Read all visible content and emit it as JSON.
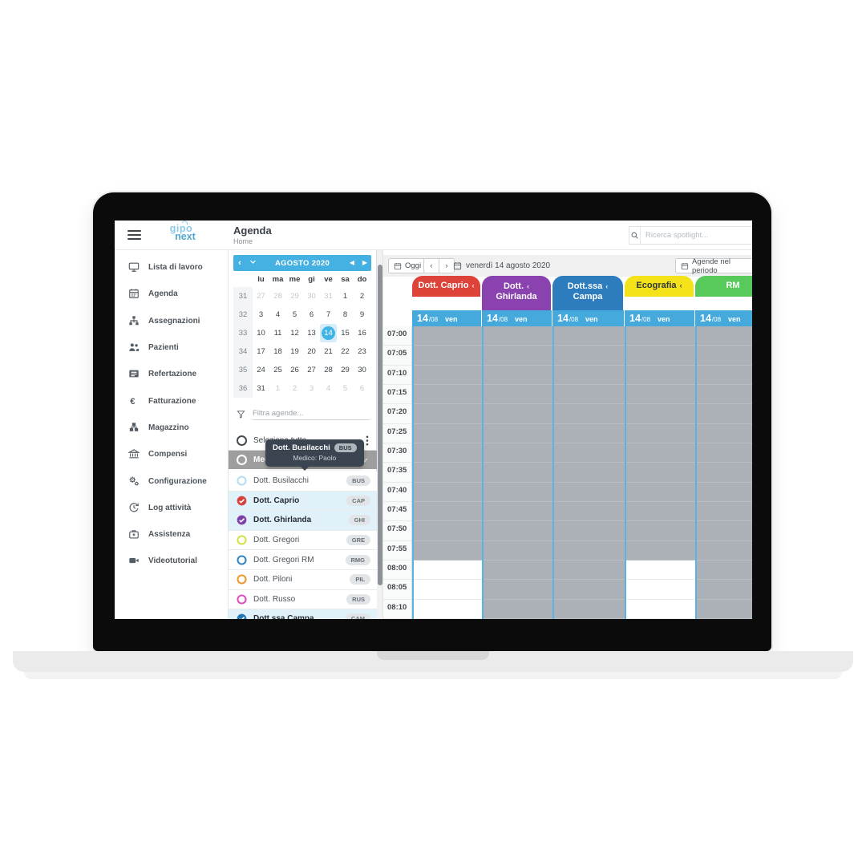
{
  "header": {
    "logo_line1": "gipo",
    "logo_line2": "next",
    "page_title": "Agenda",
    "breadcrumb": "Home",
    "search_placeholder": "Ricerca spotlight..."
  },
  "sidebar": {
    "items": [
      {
        "label": "Lista di lavoro",
        "icon": "monitor-icon"
      },
      {
        "label": "Agenda",
        "icon": "calendar-icon"
      },
      {
        "label": "Assegnazioni",
        "icon": "sitemap-icon"
      },
      {
        "label": "Pazienti",
        "icon": "users-icon"
      },
      {
        "label": "Refertazione",
        "icon": "report-icon"
      },
      {
        "label": "Fatturazione",
        "icon": "euro-icon"
      },
      {
        "label": "Magazzino",
        "icon": "boxes-icon"
      },
      {
        "label": "Compensi",
        "icon": "bank-icon"
      },
      {
        "label": "Configurazione",
        "icon": "gears-icon"
      },
      {
        "label": "Log attività",
        "icon": "history-icon"
      },
      {
        "label": "Assistenza",
        "icon": "medical-bag-icon"
      },
      {
        "label": "Videotutorial",
        "icon": "video-camera-icon"
      }
    ]
  },
  "calendar": {
    "title": "AGOSTO 2020",
    "dow": [
      "lu",
      "ma",
      "me",
      "gi",
      "ve",
      "sa",
      "do"
    ],
    "selected_day": "14",
    "weeks": [
      {
        "num": "31",
        "days": [
          {
            "d": "27",
            "muted": true
          },
          {
            "d": "28",
            "muted": true
          },
          {
            "d": "29",
            "muted": true
          },
          {
            "d": "30",
            "muted": true
          },
          {
            "d": "31",
            "muted": true
          },
          {
            "d": "1",
            "muted": false
          },
          {
            "d": "2",
            "muted": false
          }
        ]
      },
      {
        "num": "32",
        "days": [
          {
            "d": "3",
            "muted": false
          },
          {
            "d": "4",
            "muted": false
          },
          {
            "d": "5",
            "muted": false
          },
          {
            "d": "6",
            "muted": false
          },
          {
            "d": "7",
            "muted": false
          },
          {
            "d": "8",
            "muted": false
          },
          {
            "d": "9",
            "muted": false
          }
        ]
      },
      {
        "num": "33",
        "days": [
          {
            "d": "10",
            "muted": false
          },
          {
            "d": "11",
            "muted": false
          },
          {
            "d": "12",
            "muted": false
          },
          {
            "d": "13",
            "muted": false
          },
          {
            "d": "14",
            "muted": false,
            "selected": true
          },
          {
            "d": "15",
            "muted": false
          },
          {
            "d": "16",
            "muted": false
          }
        ]
      },
      {
        "num": "34",
        "days": [
          {
            "d": "17",
            "muted": false
          },
          {
            "d": "18",
            "muted": false
          },
          {
            "d": "19",
            "muted": false
          },
          {
            "d": "20",
            "muted": false
          },
          {
            "d": "21",
            "muted": false
          },
          {
            "d": "22",
            "muted": false
          },
          {
            "d": "23",
            "muted": false
          }
        ]
      },
      {
        "num": "35",
        "days": [
          {
            "d": "24",
            "muted": false
          },
          {
            "d": "25",
            "muted": false
          },
          {
            "d": "26",
            "muted": false
          },
          {
            "d": "27",
            "muted": false
          },
          {
            "d": "28",
            "muted": false
          },
          {
            "d": "29",
            "muted": false
          },
          {
            "d": "30",
            "muted": false
          }
        ]
      },
      {
        "num": "36",
        "days": [
          {
            "d": "31",
            "muted": false
          },
          {
            "d": "1",
            "muted": true
          },
          {
            "d": "2",
            "muted": true
          },
          {
            "d": "3",
            "muted": true
          },
          {
            "d": "4",
            "muted": true
          },
          {
            "d": "5",
            "muted": true
          },
          {
            "d": "6",
            "muted": true
          }
        ]
      }
    ]
  },
  "panel": {
    "filter_placeholder": "Filtra agende...",
    "select_all_label": "Seleziona tutto",
    "group_label": "Med...",
    "tooltip": {
      "title": "Dott. Busilacchi",
      "badge": "BUS",
      "subtitle": "Medico: Paolo"
    },
    "doctors": [
      {
        "name": "Dott. Busilacchi",
        "code": "BUS",
        "color": "#b5ddf1",
        "selected": false
      },
      {
        "name": "Dott. Caprio",
        "code": "CAP",
        "color": "#d6423a",
        "selected": true
      },
      {
        "name": "Dott. Ghirlanda",
        "code": "GHI",
        "color": "#7d3fa8",
        "selected": true
      },
      {
        "name": "Dott. Gregori",
        "code": "GRE",
        "color": "#d3e044",
        "selected": false
      },
      {
        "name": "Dott. Gregori RM",
        "code": "RMG",
        "color": "#2f84c4",
        "selected": false
      },
      {
        "name": "Dott. Piloni",
        "code": "PIL",
        "color": "#f0932a",
        "selected": false
      },
      {
        "name": "Dott. Russo",
        "code": "RUS",
        "color": "#e24bc0",
        "selected": false
      },
      {
        "name": "Dott.ssa Campa",
        "code": "CAM",
        "color": "#2478b5",
        "selected": true
      }
    ]
  },
  "agenda": {
    "toolbar": {
      "today_label": "Oggi",
      "prev": "‹",
      "next": "›",
      "date_label": "venerdì 14 agosto 2020",
      "period_label": "Agende nel periodo"
    },
    "date_cell": {
      "day": "14",
      "month": "/08",
      "dow": "ven"
    },
    "times": [
      "07:00",
      "07:05",
      "07:10",
      "07:15",
      "07:20",
      "07:25",
      "07:30",
      "07:35",
      "07:40",
      "07:45",
      "07:50",
      "07:55",
      "08:00",
      "08:05",
      "08:10"
    ],
    "columns": [
      {
        "line1": "Dott. Caprio",
        "line2": "",
        "color": "#dd4338",
        "text_color": "#ffffff",
        "arrow": true,
        "free_from": "08:00"
      },
      {
        "line1": "Dott.",
        "line2": "Ghirlanda",
        "color": "#8a42ae",
        "text_color": "#ffffff",
        "arrow": true,
        "free_from": null
      },
      {
        "line1": "Dott.ssa",
        "line2": "Campa",
        "color": "#2d7cbd",
        "text_color": "#ffffff",
        "arrow": true,
        "free_from": null
      },
      {
        "line1": "Ecografia",
        "line2": "",
        "color": "#f5e31a",
        "text_color": "#2f353b",
        "arrow": true,
        "free_from": "08:00"
      },
      {
        "line1": "RM",
        "line2": "",
        "color": "#58c95b",
        "text_color": "#ffffff",
        "arrow": false,
        "free_from": null
      }
    ]
  },
  "colors": {
    "accent_blue": "#45aadb",
    "busy_cell": "#acb1b7",
    "column_line": "#58b5e3",
    "row_highlight": "#e0f1fa",
    "selected_day": "#41b4e6"
  }
}
